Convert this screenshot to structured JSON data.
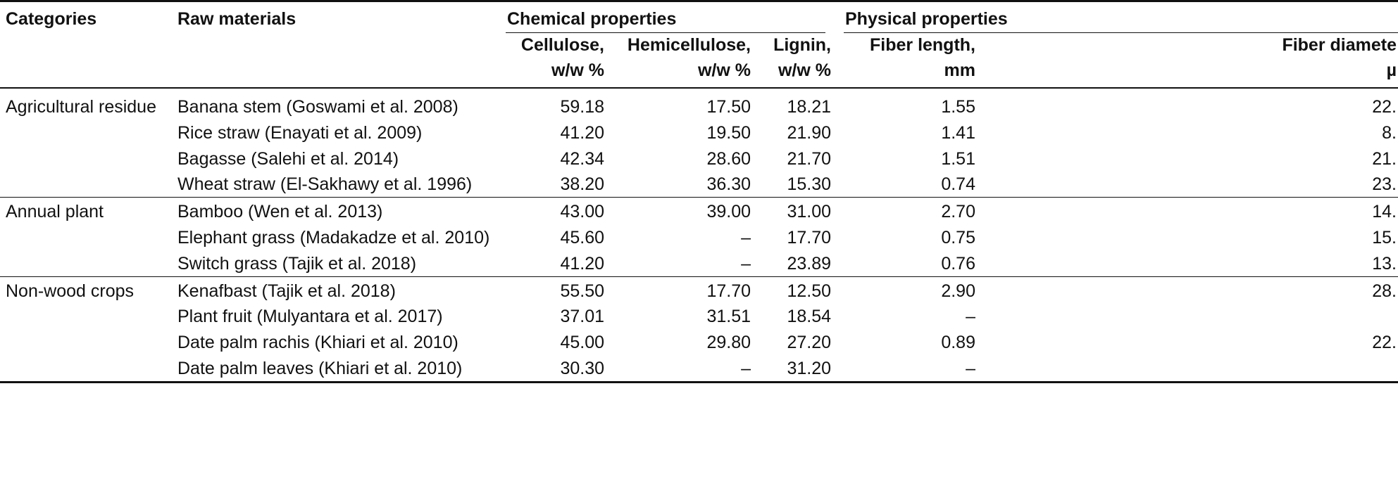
{
  "header": {
    "categories": "Categories",
    "raw_materials": "Raw materials",
    "chemical": "Chemical properties",
    "physical": "Physical properties",
    "columns": [
      [
        "Cellulose,",
        "w/w %"
      ],
      [
        "Hemicellulose,",
        "w/w %"
      ],
      [
        "Lignin,",
        "w/w %"
      ],
      [
        "Fiber length,",
        "mm"
      ],
      [
        "Fiber diamete",
        "µ"
      ]
    ]
  },
  "groups": [
    {
      "category": "Agricultural residue",
      "rows": [
        [
          "Banana stem (Goswami et al. 2008)",
          "59.18",
          "17.50",
          "18.21",
          "1.55",
          "22."
        ],
        [
          "Rice straw (Enayati et al. 2009)",
          "41.20",
          "19.50",
          "21.90",
          "1.41",
          "8."
        ],
        [
          "Bagasse (Salehi et al. 2014)",
          "42.34",
          "28.60",
          "21.70",
          "1.51",
          "21."
        ],
        [
          "Wheat straw (El-Sakhawy et al. 1996)",
          "38.20",
          "36.30",
          "15.30",
          "0.74",
          "23."
        ]
      ]
    },
    {
      "category": "Annual plant",
      "rows": [
        [
          "Bamboo (Wen et al. 2013)",
          "43.00",
          "39.00",
          "31.00",
          "2.70",
          "14."
        ],
        [
          "Elephant grass (Madakadze et al. 2010)",
          "45.60",
          "–",
          "17.70",
          "0.75",
          "15."
        ],
        [
          "Switch grass (Tajik et al. 2018)",
          "41.20",
          "–",
          "23.89",
          "0.76",
          "13."
        ]
      ]
    },
    {
      "category": "Non-wood crops",
      "rows": [
        [
          "Kenafbast (Tajik et al. 2018)",
          "55.50",
          "17.70",
          "12.50",
          "2.90",
          "28."
        ],
        [
          "Plant fruit (Mulyantara et al. 2017)",
          "37.01",
          "31.51",
          "18.54",
          "–",
          null
        ],
        [
          "Date palm rachis (Khiari et al. 2010)",
          "45.00",
          "29.80",
          "27.20",
          "0.89",
          "22."
        ],
        [
          "Date palm leaves (Khiari et al. 2010)",
          "30.30",
          "–",
          "31.20",
          "–",
          null
        ]
      ]
    }
  ]
}
